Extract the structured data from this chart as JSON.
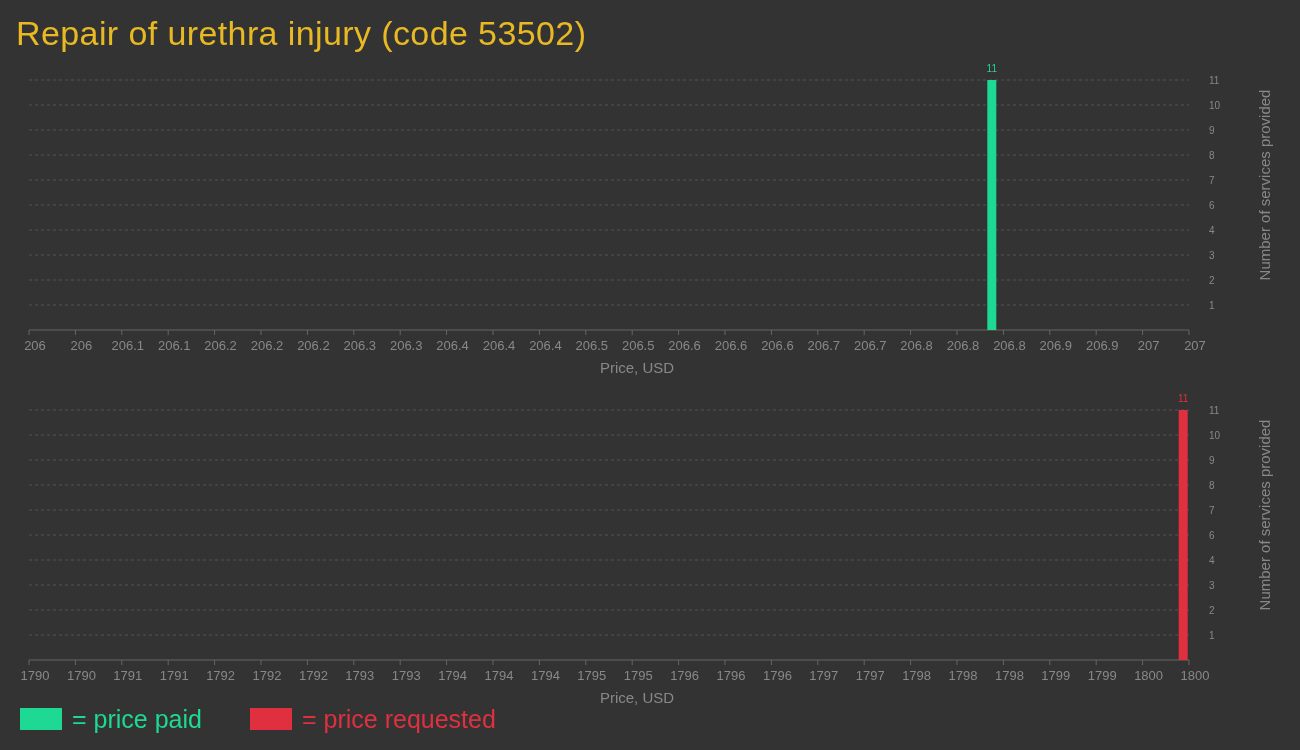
{
  "chart_data": [
    {
      "type": "bar",
      "title": "Repair of urethra injury (code 53502)",
      "xlabel": "Price, USD",
      "ylabel": "Number of services provided",
      "x": [
        206.83
      ],
      "series": [
        {
          "name": "= price paid",
          "color": "#1ed993",
          "values": [
            11
          ]
        }
      ],
      "xlim": [
        206,
        207
      ],
      "xticks": [
        206,
        {
          "value": 206.04,
          "label": "206"
        },
        {
          "value": 206.08,
          "label": "206.1"
        },
        {
          "value": 206.12,
          "label": "206.1"
        },
        {
          "value": 206.16,
          "label": "206.2"
        },
        206.2,
        {
          "value": 206.24,
          "label": "206.2"
        },
        {
          "value": 206.28,
          "label": "206.3"
        },
        {
          "value": 206.32,
          "label": "206.3"
        },
        {
          "value": 206.36,
          "label": "206.4"
        },
        206.4,
        {
          "value": 206.44,
          "label": "206.4"
        },
        {
          "value": 206.48,
          "label": "206.5"
        },
        {
          "value": 206.52,
          "label": "206.5"
        },
        {
          "value": 206.56,
          "label": "206.6"
        },
        206.6,
        {
          "value": 206.64,
          "label": "206.6"
        },
        {
          "value": 206.68,
          "label": "206.7"
        },
        {
          "value": 206.72,
          "label": "206.7"
        },
        {
          "value": 206.76,
          "label": "206.8"
        },
        206.8,
        {
          "value": 206.84,
          "label": "206.8"
        },
        {
          "value": 206.88,
          "label": "206.9"
        },
        {
          "value": 206.92,
          "label": "206.9"
        },
        {
          "value": 206.96,
          "label": "207"
        },
        207
      ],
      "ylim": [
        0,
        11
      ],
      "yticks": [
        {
          "value": 1.1,
          "label": "1"
        },
        {
          "value": 2.2,
          "label": "2"
        },
        {
          "value": 3.3,
          "label": "3"
        },
        {
          "value": 4.4,
          "label": "4"
        },
        {
          "value": 5.5,
          "label": "6"
        },
        {
          "value": 6.6,
          "label": "7"
        },
        {
          "value": 7.7,
          "label": "8"
        },
        {
          "value": 8.8,
          "label": "9"
        },
        {
          "value": 9.9,
          "label": "10"
        },
        11
      ],
      "grid": "y",
      "data_labels": true,
      "legend": "bottom left"
    },
    {
      "type": "bar",
      "xlabel": "Price, USD",
      "ylabel": "Number of services provided",
      "x": [
        1799.95
      ],
      "series": [
        {
          "name": "= price requested",
          "color": "#e0303f",
          "values": [
            11
          ]
        }
      ],
      "xlim": [
        1790,
        1800
      ],
      "xticks": [
        1790,
        {
          "value": 1790.4,
          "label": "1790"
        },
        {
          "value": 1790.8,
          "label": "1791"
        },
        {
          "value": 1791.2,
          "label": "1791"
        },
        {
          "value": 1791.6,
          "label": "1792"
        },
        1792,
        {
          "value": 1792.4,
          "label": "1792"
        },
        {
          "value": 1792.8,
          "label": "1793"
        },
        {
          "value": 1793.2,
          "label": "1793"
        },
        {
          "value": 1793.6,
          "label": "1794"
        },
        1794,
        {
          "value": 1794.4,
          "label": "1794"
        },
        {
          "value": 1794.8,
          "label": "1795"
        },
        {
          "value": 1795.2,
          "label": "1795"
        },
        {
          "value": 1795.6,
          "label": "1796"
        },
        1796,
        {
          "value": 1796.4,
          "label": "1796"
        },
        {
          "value": 1796.8,
          "label": "1797"
        },
        {
          "value": 1797.2,
          "label": "1797"
        },
        {
          "value": 1797.6,
          "label": "1798"
        },
        1798,
        {
          "value": 1798.4,
          "label": "1798"
        },
        {
          "value": 1798.8,
          "label": "1799"
        },
        {
          "value": 1799.2,
          "label": "1799"
        },
        {
          "value": 1799.6,
          "label": "1800"
        },
        1800
      ],
      "ylim": [
        0,
        11
      ],
      "yticks": [
        {
          "value": 1.1,
          "label": "1"
        },
        {
          "value": 2.2,
          "label": "2"
        },
        {
          "value": 3.3,
          "label": "3"
        },
        {
          "value": 4.4,
          "label": "4"
        },
        {
          "value": 5.5,
          "label": "6"
        },
        {
          "value": 6.6,
          "label": "7"
        },
        {
          "value": 7.7,
          "label": "8"
        },
        {
          "value": 8.8,
          "label": "9"
        },
        {
          "value": 9.9,
          "label": "10"
        },
        11
      ],
      "grid": "y",
      "data_labels": true,
      "legend": "bottom left"
    }
  ]
}
